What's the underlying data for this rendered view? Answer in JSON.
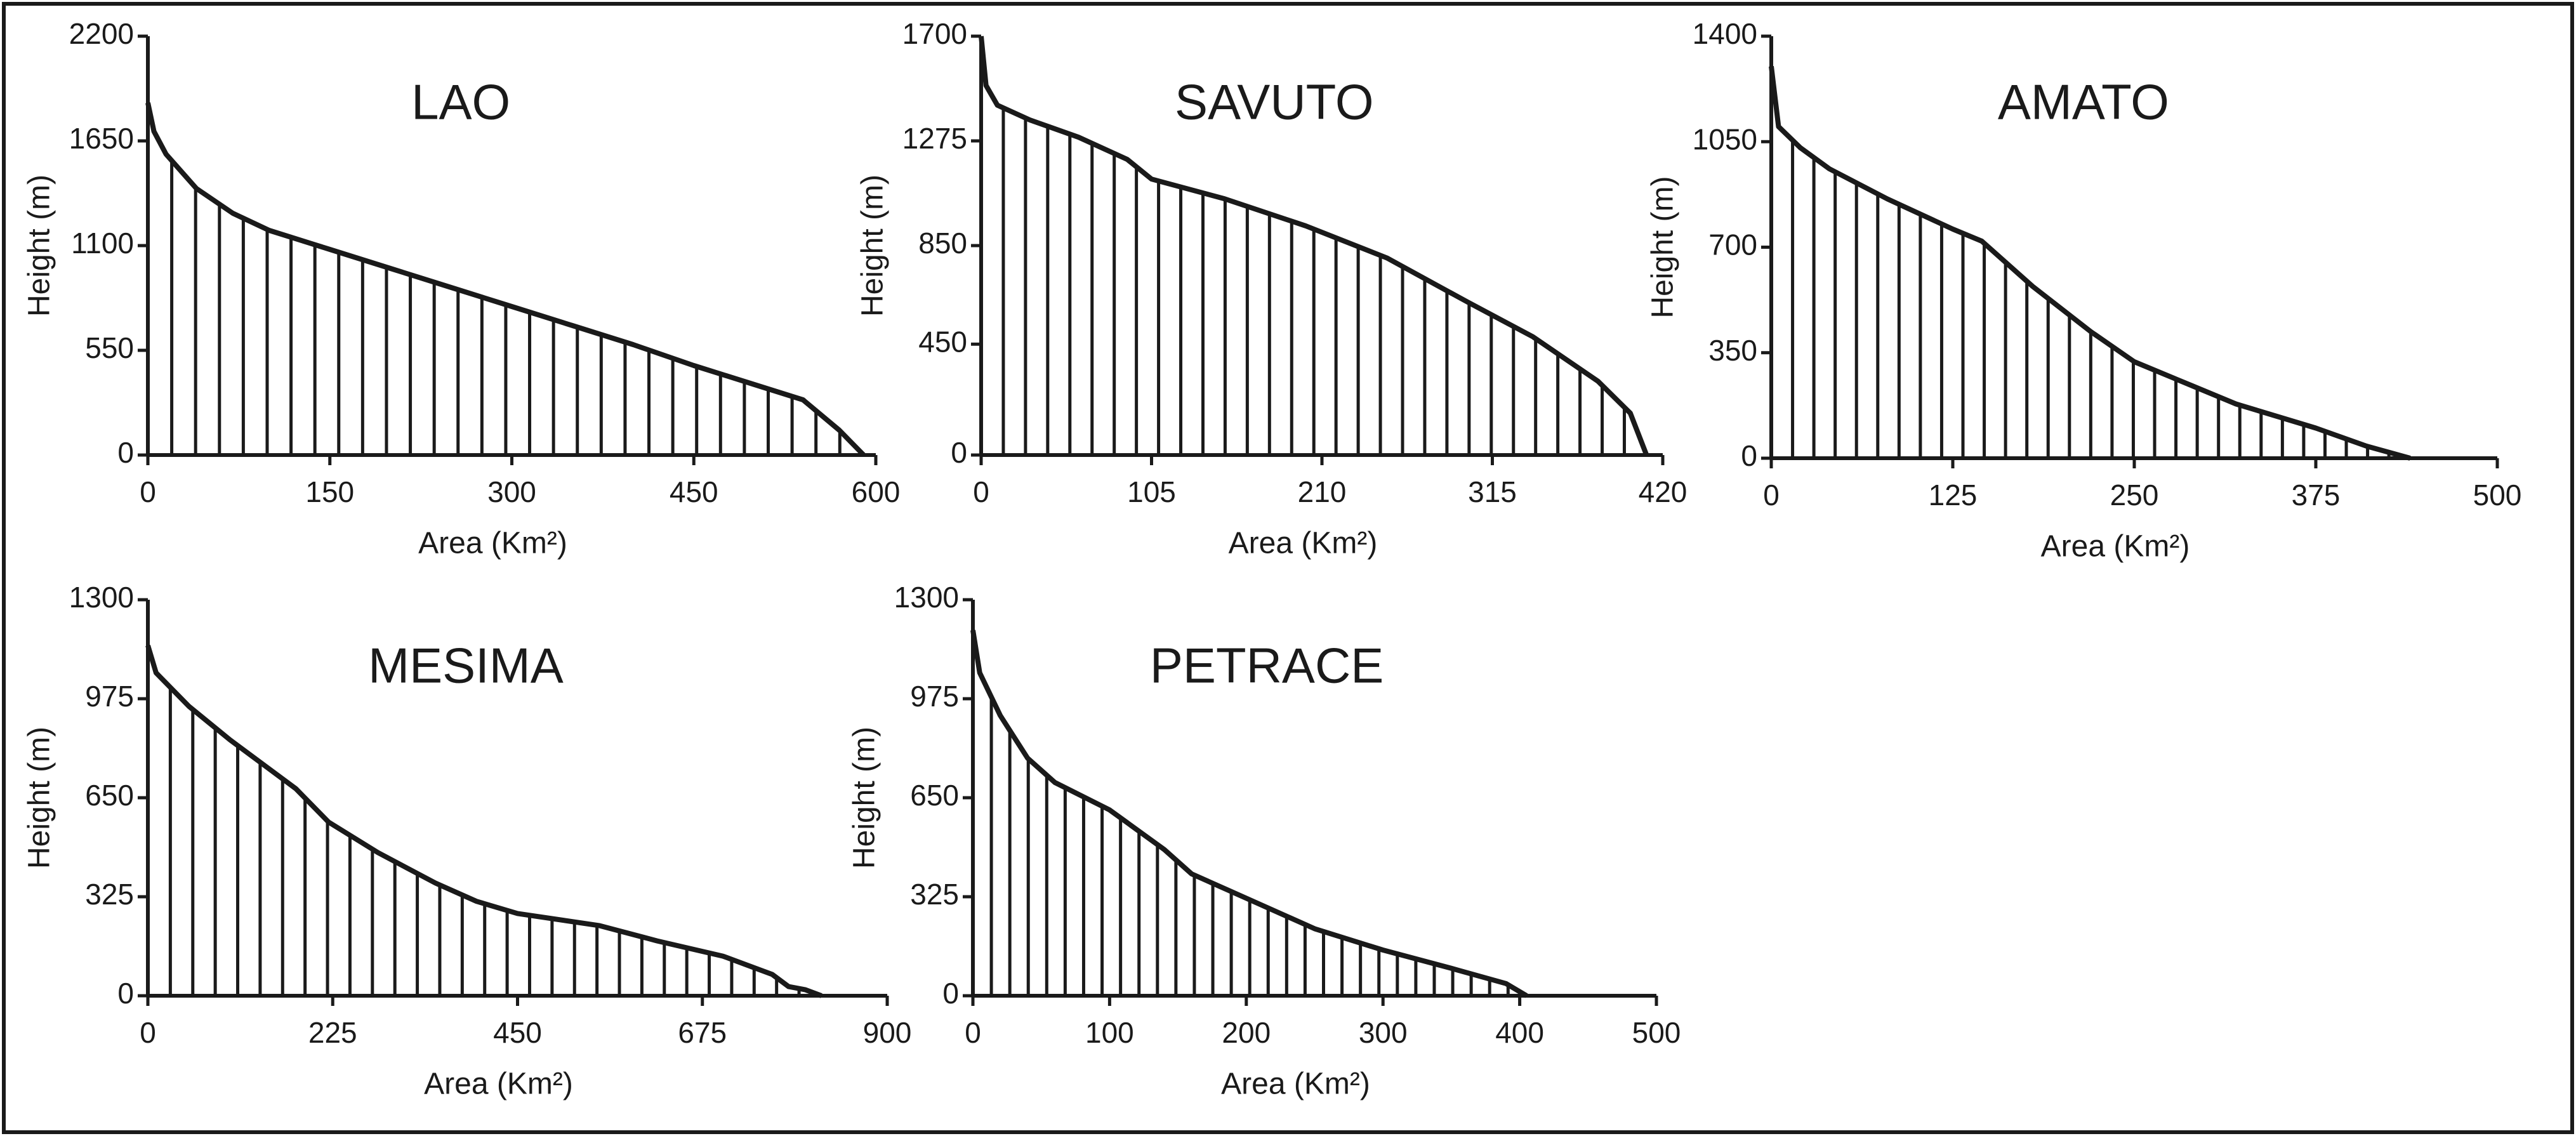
{
  "chart_data": [
    {
      "type": "line",
      "title": "LAO",
      "x_label": "Area (Km²)",
      "y_label": "Height (m)",
      "color": "#1a1a1a",
      "x": [
        0,
        5,
        15,
        40,
        70,
        100,
        150,
        200,
        250,
        300,
        350,
        400,
        450,
        500,
        540,
        570,
        590
      ],
      "values": [
        1850,
        1700,
        1580,
        1400,
        1270,
        1180,
        1080,
        980,
        880,
        780,
        680,
        580,
        470,
        370,
        290,
        130,
        0
      ],
      "xlim": [
        0,
        600
      ],
      "xticks": [
        0,
        150,
        300,
        450,
        600
      ],
      "ylim": [
        0,
        2200
      ],
      "yticks": [
        0,
        550,
        1100,
        1650,
        2200
      ]
    },
    {
      "type": "line",
      "title": "SAVUTO",
      "x_label": "Area (Km²)",
      "y_label": "Height (m)",
      "color": "#1a1a1a",
      "x": [
        0,
        3,
        10,
        30,
        60,
        90,
        105,
        150,
        200,
        250,
        300,
        340,
        380,
        400,
        410
      ],
      "values": [
        1700,
        1500,
        1420,
        1360,
        1290,
        1200,
        1120,
        1040,
        930,
        800,
        620,
        480,
        300,
        170,
        0
      ],
      "xlim": [
        0,
        420
      ],
      "xticks": [
        0,
        105,
        210,
        315,
        420
      ],
      "ylim": [
        0,
        1700
      ],
      "yticks": [
        0,
        450,
        850,
        1275,
        1700
      ]
    },
    {
      "type": "line",
      "title": "AMATO",
      "x_label": "Area (Km²)",
      "y_label": "Height (m)",
      "color": "#1a1a1a",
      "x": [
        0,
        5,
        20,
        40,
        80,
        125,
        145,
        180,
        220,
        250,
        290,
        320,
        375,
        410,
        440
      ],
      "values": [
        1300,
        1100,
        1030,
        960,
        860,
        760,
        720,
        570,
        420,
        320,
        240,
        180,
        100,
        40,
        0
      ],
      "xlim": [
        0,
        500
      ],
      "xticks": [
        0,
        125,
        250,
        375,
        500
      ],
      "ylim": [
        0,
        1400
      ],
      "yticks": [
        0,
        350,
        700,
        1050,
        1400
      ]
    },
    {
      "type": "line",
      "title": "MESIMA",
      "x_label": "Area (Km²)",
      "y_label": "Height (m)",
      "color": "#1a1a1a",
      "x": [
        0,
        10,
        50,
        100,
        150,
        180,
        220,
        280,
        350,
        400,
        450,
        550,
        620,
        700,
        760,
        780,
        800,
        820
      ],
      "values": [
        1150,
        1060,
        950,
        840,
        740,
        680,
        570,
        470,
        370,
        310,
        270,
        230,
        180,
        130,
        70,
        30,
        20,
        0
      ],
      "xlim": [
        0,
        900
      ],
      "xticks": [
        0,
        225,
        450,
        675,
        900
      ],
      "ylim": [
        0,
        1300
      ],
      "yticks": [
        0,
        325,
        650,
        975,
        1300
      ]
    },
    {
      "type": "line",
      "title": "PETRACE",
      "x_label": "Area (Km²)",
      "y_label": "Height (m)",
      "color": "#1a1a1a",
      "x": [
        0,
        5,
        20,
        40,
        60,
        100,
        140,
        160,
        200,
        250,
        300,
        350,
        390,
        405
      ],
      "values": [
        1200,
        1060,
        920,
        780,
        700,
        610,
        480,
        400,
        320,
        220,
        150,
        90,
        40,
        0
      ],
      "xlim": [
        0,
        500
      ],
      "xticks": [
        0,
        100,
        200,
        300,
        400,
        500
      ],
      "ylim": [
        0,
        1300
      ],
      "yticks": [
        0,
        325,
        650,
        975,
        1300
      ]
    }
  ]
}
